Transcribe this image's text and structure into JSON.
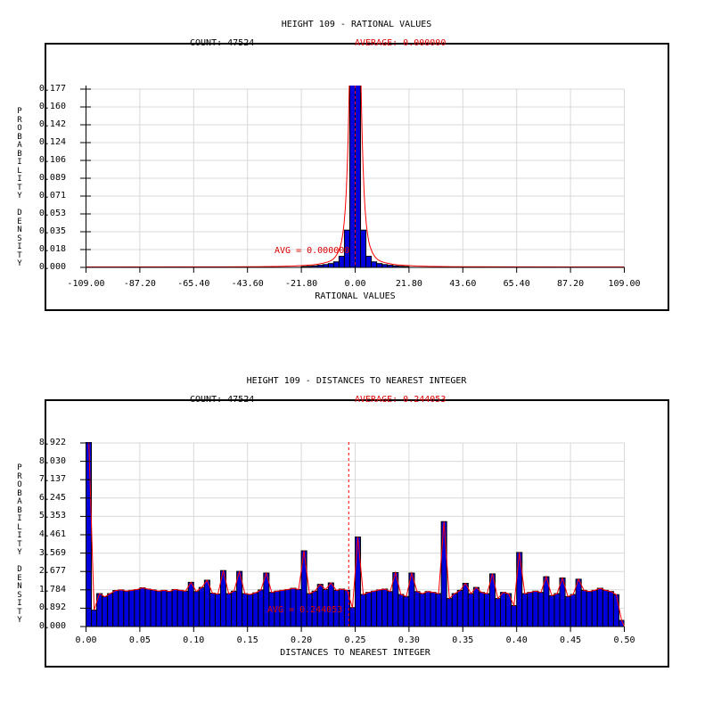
{
  "colors": {
    "background": "#ffffff",
    "bar_fill": "#0000dd",
    "bar_stroke": "#000000",
    "curve": "#ff0000",
    "avg_line": "#ff0000",
    "red_text": "#dd0000",
    "grid": "#d8d8d8",
    "frame": "#000000"
  },
  "chart_data": [
    {
      "type": "bar",
      "title": "HEIGHT 109 - RATIONAL VALUES",
      "count_label": "COUNT: 47524",
      "average_label": "AVERAGE: 0.000000",
      "avg_annotation": "AVG = 0.000000",
      "xlabel": "RATIONAL VALUES",
      "ylabel": "PROBABILITY DENSITY",
      "xlim": [
        -109,
        109
      ],
      "ymax": 0.177,
      "avg_value": 0.0,
      "legend": "grid on, red density curve, red dashed line at average",
      "xtick_labels": [
        "-109.00",
        "-87.20",
        "-65.40",
        "-43.60",
        "-21.80",
        "0.00",
        "21.80",
        "43.60",
        "65.40",
        "87.20",
        "109.00"
      ],
      "ytick_labels": [
        "0.177",
        "0.160",
        "0.142",
        "0.124",
        "0.106",
        "0.089",
        "0.071",
        "0.053",
        "0.035",
        "0.018",
        "0.000"
      ],
      "bar_width": 2.18,
      "bars": [
        {
          "x": -20.71,
          "v": 0.0008
        },
        {
          "x": -18.53,
          "v": 0.0011
        },
        {
          "x": -16.35,
          "v": 0.0015
        },
        {
          "x": -14.17,
          "v": 0.0021
        },
        {
          "x": -11.99,
          "v": 0.0028
        },
        {
          "x": -9.81,
          "v": 0.0038
        },
        {
          "x": -7.63,
          "v": 0.0055
        },
        {
          "x": -5.45,
          "v": 0.011
        },
        {
          "x": -3.27,
          "v": 0.037
        },
        {
          "x": -1.09,
          "v": 0.21
        },
        {
          "x": 1.09,
          "v": 0.21
        },
        {
          "x": 3.27,
          "v": 0.037
        },
        {
          "x": 5.45,
          "v": 0.011
        },
        {
          "x": 7.63,
          "v": 0.0055
        },
        {
          "x": 9.81,
          "v": 0.0038
        },
        {
          "x": 11.99,
          "v": 0.0028
        },
        {
          "x": 14.17,
          "v": 0.0021
        },
        {
          "x": 16.35,
          "v": 0.0015
        },
        {
          "x": 18.53,
          "v": 0.0011
        },
        {
          "x": 20.71,
          "v": 0.0008
        }
      ],
      "curve": [
        [
          -109,
          0.0004
        ],
        [
          -60,
          0.0005
        ],
        [
          -40,
          0.0007
        ],
        [
          -30,
          0.001
        ],
        [
          -25,
          0.0013
        ],
        [
          -20,
          0.002
        ],
        [
          -17,
          0.0026
        ],
        [
          -15,
          0.0032
        ],
        [
          -13,
          0.0042
        ],
        [
          -11,
          0.0055
        ],
        [
          -10,
          0.0065
        ],
        [
          -9,
          0.008
        ],
        [
          -8,
          0.0105
        ],
        [
          -7,
          0.0145
        ],
        [
          -6,
          0.021
        ],
        [
          -5.5,
          0.026
        ],
        [
          -5,
          0.033
        ],
        [
          -4.5,
          0.043
        ],
        [
          -4,
          0.058
        ],
        [
          -3.6,
          0.075
        ],
        [
          -3.2,
          0.1
        ],
        [
          -2.9,
          0.125
        ],
        [
          -2.6,
          0.155
        ],
        [
          -2.3,
          0.19
        ],
        [
          -2.1,
          0.22
        ],
        [
          2.1,
          0.22
        ],
        [
          2.3,
          0.19
        ],
        [
          2.6,
          0.155
        ],
        [
          2.9,
          0.125
        ],
        [
          3.2,
          0.1
        ],
        [
          3.6,
          0.075
        ],
        [
          4,
          0.058
        ],
        [
          4.5,
          0.043
        ],
        [
          5,
          0.033
        ],
        [
          5.5,
          0.026
        ],
        [
          6,
          0.021
        ],
        [
          7,
          0.0145
        ],
        [
          8,
          0.0105
        ],
        [
          9,
          0.008
        ],
        [
          10,
          0.0065
        ],
        [
          11,
          0.0055
        ],
        [
          13,
          0.0042
        ],
        [
          15,
          0.0032
        ],
        [
          17,
          0.0026
        ],
        [
          20,
          0.002
        ],
        [
          25,
          0.0013
        ],
        [
          30,
          0.001
        ],
        [
          40,
          0.0007
        ],
        [
          60,
          0.0005
        ],
        [
          109,
          0.0004
        ]
      ]
    },
    {
      "type": "bar",
      "title": "HEIGHT 109 - DISTANCES TO NEAREST INTEGER",
      "count_label": "COUNT: 47524",
      "average_label": "AVERAGE: 0.244053",
      "avg_annotation": "AVG = 0.244053",
      "xlabel": "DISTANCES TO NEAREST INTEGER",
      "ylabel": "PROBABILITY DENSITY",
      "xlim": [
        0,
        0.5
      ],
      "ymax": 8.922,
      "avg_value": 0.244053,
      "legend": "grid on, red density curve, red dashed line at average",
      "xtick_labels": [
        "0.00",
        "0.05",
        "0.10",
        "0.15",
        "0.20",
        "0.25",
        "0.30",
        "0.35",
        "0.40",
        "0.45",
        "0.50"
      ],
      "ytick_labels": [
        "8.922",
        "8.030",
        "7.137",
        "6.245",
        "5.353",
        "4.461",
        "3.569",
        "2.677",
        "1.784",
        "0.892",
        "0.000"
      ],
      "bin_start": 0,
      "bin_width": 0.005,
      "values": [
        9.2,
        0.8,
        1.6,
        1.45,
        1.6,
        1.75,
        1.78,
        1.72,
        1.76,
        1.8,
        1.88,
        1.82,
        1.78,
        1.72,
        1.76,
        1.7,
        1.8,
        1.76,
        1.72,
        2.15,
        1.7,
        1.9,
        2.25,
        1.62,
        1.58,
        2.72,
        1.6,
        1.72,
        2.68,
        1.6,
        1.56,
        1.64,
        1.78,
        2.6,
        1.66,
        1.72,
        1.76,
        1.8,
        1.86,
        1.8,
        3.68,
        1.6,
        1.72,
        2.05,
        1.8,
        2.12,
        1.76,
        1.82,
        1.76,
        0.92,
        4.35,
        1.56,
        1.66,
        1.72,
        1.78,
        1.82,
        1.7,
        2.62,
        1.56,
        1.46,
        2.6,
        1.7,
        1.6,
        1.7,
        1.66,
        1.6,
        5.1,
        1.36,
        1.6,
        1.76,
        2.1,
        1.6,
        1.9,
        1.66,
        1.6,
        2.56,
        1.36,
        1.66,
        1.6,
        1.02,
        3.6,
        1.6,
        1.66,
        1.72,
        1.66,
        2.42,
        1.5,
        1.6,
        2.36,
        1.46,
        1.56,
        2.3,
        1.76,
        1.7,
        1.76,
        1.86,
        1.76,
        1.7,
        1.55,
        0.3
      ]
    }
  ]
}
